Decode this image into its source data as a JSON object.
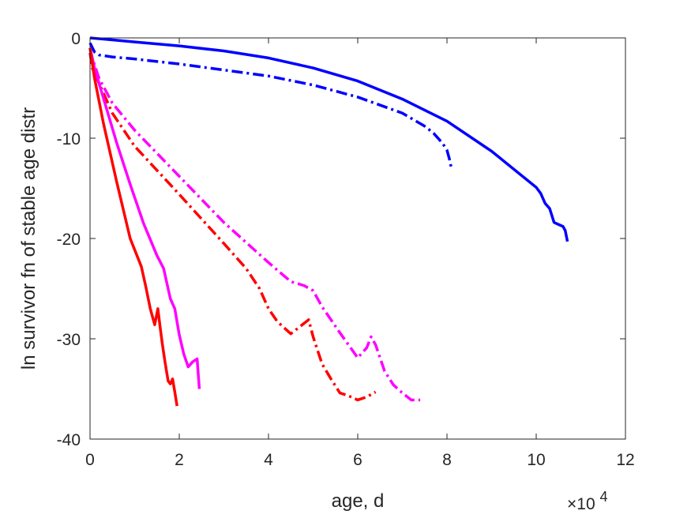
{
  "chart_data": {
    "type": "line",
    "xlabel": "age, d",
    "ylabel": "ln survivor fn of stable age distr",
    "x_exponent_label": "×10",
    "x_exponent_power": "4",
    "xlim": [
      0,
      120000
    ],
    "ylim": [
      -40,
      0
    ],
    "xticks": [
      0,
      20000,
      40000,
      60000,
      80000,
      100000,
      120000
    ],
    "xtick_labels": [
      "0",
      "2",
      "4",
      "6",
      "8",
      "10",
      "12"
    ],
    "yticks": [
      0,
      -10,
      -20,
      -30,
      -40
    ],
    "ytick_labels": [
      "0",
      "-10",
      "-20",
      "-30",
      "-40"
    ],
    "grid": false,
    "legend": "none",
    "series": [
      {
        "color": "#0000ff",
        "style": "solid",
        "x": [
          0,
          5000,
          10000,
          20000,
          30000,
          40000,
          50000,
          60000,
          70000,
          80000,
          90000,
          100000,
          101000,
          102000,
          103000,
          104000,
          105000,
          106000,
          106500,
          107000
        ],
        "y": [
          0,
          -0.2,
          -0.4,
          -0.8,
          -1.3,
          -2.0,
          -3.0,
          -4.3,
          -6.1,
          -8.3,
          -11.3,
          -14.9,
          -15.5,
          -16.5,
          -17.0,
          -18.4,
          -18.6,
          -18.8,
          -19.2,
          -20.3
        ]
      },
      {
        "color": "#0000ff",
        "style": "dashdot",
        "x": [
          0,
          1000,
          2000,
          5000,
          10000,
          20000,
          30000,
          40000,
          50000,
          60000,
          70000,
          75000,
          77000,
          79000,
          80000,
          80500,
          81000
        ],
        "y": [
          -0.5,
          -1.4,
          -1.7,
          -1.9,
          -2.1,
          -2.6,
          -3.2,
          -3.8,
          -4.7,
          -5.9,
          -7.5,
          -8.8,
          -9.5,
          -10.5,
          -11.2,
          -12.0,
          -13.0
        ]
      },
      {
        "color": "#ff00ff",
        "style": "dashdot",
        "x": [
          0,
          500,
          2000,
          5000,
          10000,
          20000,
          30000,
          40000,
          45000,
          48000,
          50000,
          52000,
          56000,
          60000,
          62000,
          63000,
          64000,
          66000,
          68000,
          70000,
          72000,
          74000
        ],
        "y": [
          -1.0,
          -2.0,
          -4.0,
          -6.5,
          -9.2,
          -13.8,
          -18.4,
          -22.4,
          -24.3,
          -24.7,
          -25.2,
          -26.8,
          -29.4,
          -31.9,
          -30.9,
          -29.8,
          -30.6,
          -33.2,
          -34.6,
          -35.4,
          -36.1,
          -36.1
        ]
      },
      {
        "color": "#ff0000",
        "style": "dashdot",
        "x": [
          0,
          500,
          2000,
          5000,
          10000,
          20000,
          30000,
          35000,
          38000,
          40000,
          42000,
          45000,
          47000,
          49000,
          50000,
          52000,
          54000,
          56000,
          58000,
          60000,
          62000,
          64000
        ],
        "y": [
          -1.5,
          -3.0,
          -4.5,
          -7.5,
          -10.8,
          -15.6,
          -20.5,
          -23.0,
          -25.0,
          -27.0,
          -28.3,
          -29.5,
          -28.8,
          -28.1,
          -29.8,
          -32.5,
          -34.0,
          -35.4,
          -35.7,
          -36.1,
          -35.8,
          -35.3
        ]
      },
      {
        "color": "#ff00ff",
        "style": "solid",
        "x": [
          0,
          1000,
          3000,
          6000,
          9000,
          12000,
          15000,
          16500,
          18000,
          19000,
          20000,
          21000,
          22000,
          23000,
          24000,
          24500
        ],
        "y": [
          -1.0,
          -3.0,
          -6.0,
          -10.5,
          -14.6,
          -18.5,
          -21.7,
          -23.0,
          -26.0,
          -27.0,
          -29.6,
          -31.5,
          -32.8,
          -32.3,
          -32.0,
          -35.0
        ]
      },
      {
        "color": "#ff0000",
        "style": "solid",
        "x": [
          0,
          1000,
          3000,
          6000,
          9000,
          11500,
          12500,
          13500,
          14500,
          15200,
          15700,
          16200,
          16800,
          17500,
          18000,
          18500,
          19000,
          19500
        ],
        "y": [
          -1.0,
          -4.0,
          -8.5,
          -14.4,
          -20.0,
          -22.8,
          -24.8,
          -27.0,
          -28.6,
          -27.0,
          -28.8,
          -30.5,
          -32.3,
          -34.2,
          -34.5,
          -34.0,
          -35.3,
          -36.7
        ]
      }
    ]
  }
}
